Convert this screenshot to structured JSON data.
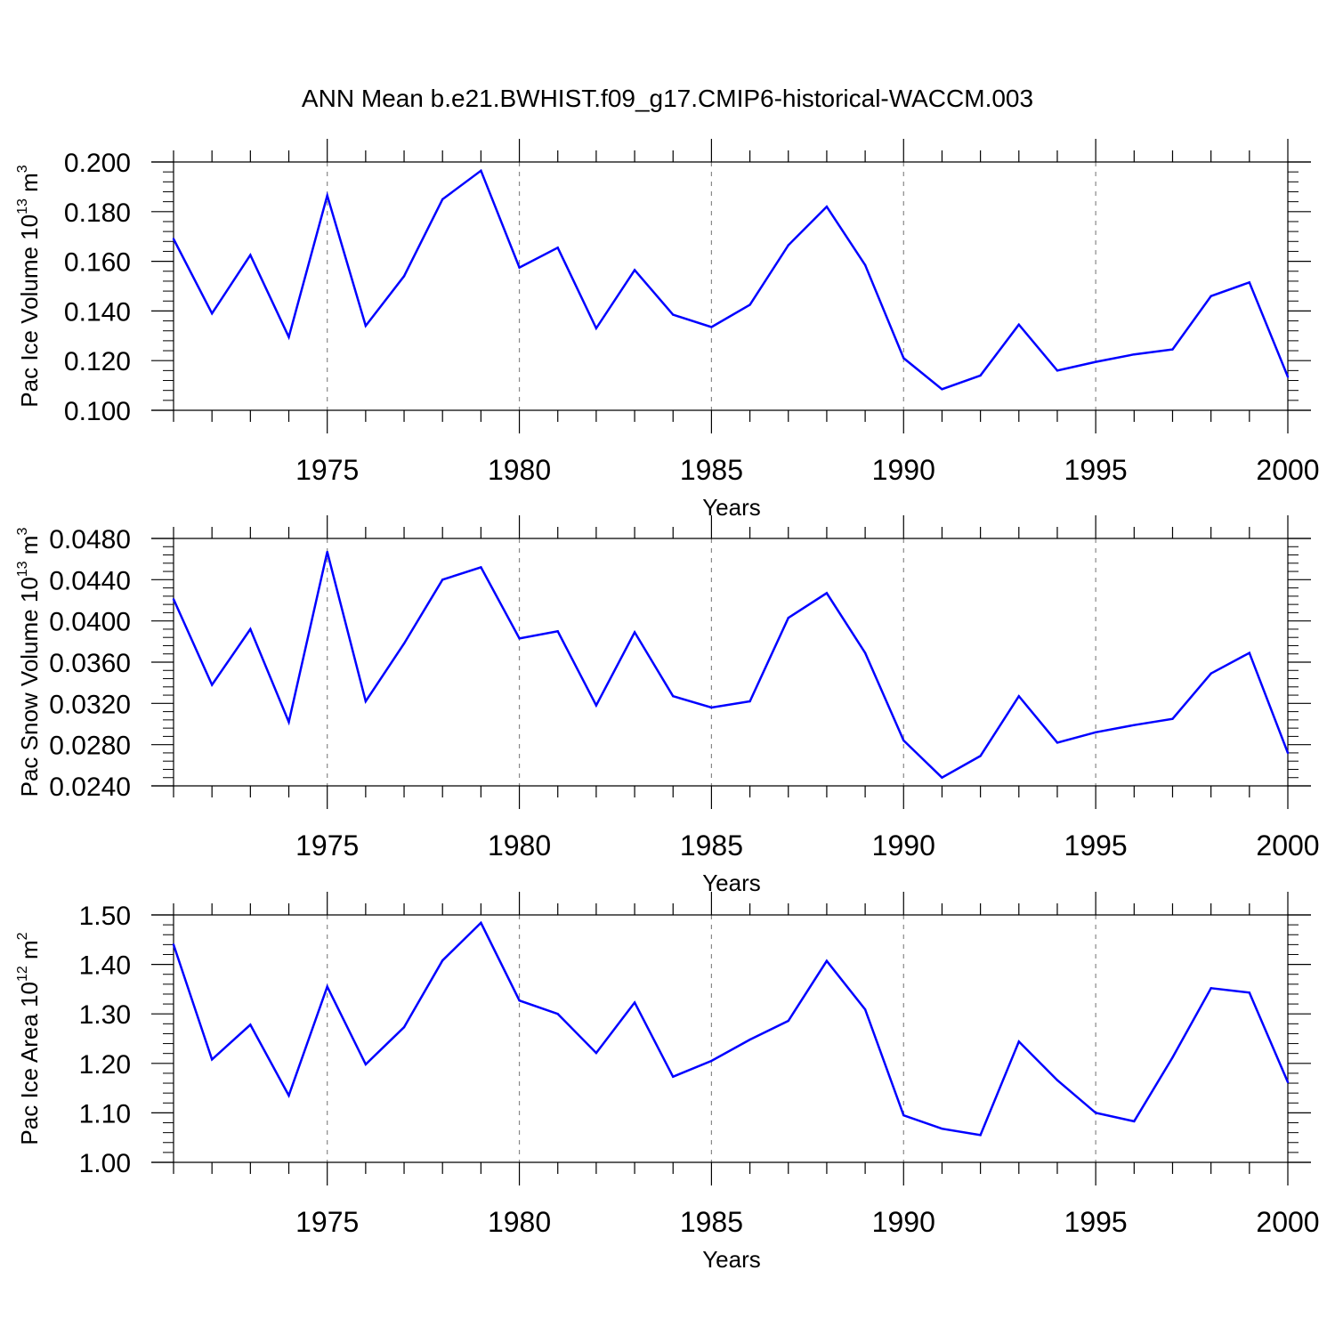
{
  "title": "ANN Mean b.e21.BWHIST.f09_g17.CMIP6-historical-WACCM.003",
  "colors": {
    "line": "#0000ff",
    "axis": "#000000",
    "grid": "#888888"
  },
  "chart_data": [
    {
      "type": "line",
      "ylabel_prefix": "Pac Ice Volume 10",
      "ylabel_exp": "13",
      "ylabel_unit": " m",
      "ylabel_unit_exp": "3",
      "xlabel": "Years",
      "xlim": [
        1971,
        2000
      ],
      "ylim": [
        0.1,
        0.2
      ],
      "yticks": [
        0.1,
        0.12,
        0.14,
        0.16,
        0.18,
        0.2
      ],
      "ytick_labels": [
        "0.100",
        "0.120",
        "0.140",
        "0.160",
        "0.180",
        "0.200"
      ],
      "xticks": [
        1975,
        1980,
        1985,
        1990,
        1995,
        2000
      ],
      "xtick_labels": [
        "1975",
        "1980",
        "1985",
        "1990",
        "1995",
        "2000"
      ],
      "x": [
        1971,
        1972,
        1973,
        1974,
        1975,
        1976,
        1977,
        1978,
        1979,
        1980,
        1981,
        1982,
        1983,
        1984,
        1985,
        1986,
        1987,
        1988,
        1989,
        1990,
        1991,
        1992,
        1993,
        1994,
        1995,
        1996,
        1997,
        1998,
        1999,
        2000
      ],
      "values": [
        0.169,
        0.139,
        0.1625,
        0.1295,
        0.1865,
        0.134,
        0.154,
        0.185,
        0.1965,
        0.1575,
        0.1655,
        0.133,
        0.1565,
        0.1385,
        0.1335,
        0.1425,
        0.1665,
        0.182,
        0.1585,
        0.121,
        0.1085,
        0.114,
        0.1345,
        0.116,
        0.1195,
        0.1225,
        0.1245,
        0.146,
        0.1515,
        0.1135
      ]
    },
    {
      "type": "line",
      "ylabel_prefix": "Pac Snow Volume 10",
      "ylabel_exp": "13",
      "ylabel_unit": " m",
      "ylabel_unit_exp": "3",
      "xlabel": "Years",
      "xlim": [
        1971,
        2000
      ],
      "ylim": [
        0.024,
        0.048
      ],
      "yticks": [
        0.024,
        0.028,
        0.032,
        0.036,
        0.04,
        0.044,
        0.048
      ],
      "ytick_labels": [
        "0.0240",
        "0.0280",
        "0.0320",
        "0.0360",
        "0.0400",
        "0.0440",
        "0.0480"
      ],
      "xticks": [
        1975,
        1980,
        1985,
        1990,
        1995,
        2000
      ],
      "xtick_labels": [
        "1975",
        "1980",
        "1985",
        "1990",
        "1995",
        "2000"
      ],
      "x": [
        1971,
        1972,
        1973,
        1974,
        1975,
        1976,
        1977,
        1978,
        1979,
        1980,
        1981,
        1982,
        1983,
        1984,
        1985,
        1986,
        1987,
        1988,
        1989,
        1990,
        1991,
        1992,
        1993,
        1994,
        1995,
        1996,
        1997,
        1998,
        1999,
        2000
      ],
      "values": [
        0.0421,
        0.0338,
        0.0392,
        0.0302,
        0.0467,
        0.0322,
        0.0378,
        0.044,
        0.0452,
        0.0383,
        0.039,
        0.0318,
        0.0389,
        0.0327,
        0.0316,
        0.0322,
        0.0403,
        0.0427,
        0.0369,
        0.0284,
        0.0248,
        0.0269,
        0.0327,
        0.0282,
        0.0292,
        0.0299,
        0.0305,
        0.0349,
        0.0369,
        0.0272
      ]
    },
    {
      "type": "line",
      "ylabel_prefix": "Pac Ice Area 10",
      "ylabel_exp": "12",
      "ylabel_unit": " m",
      "ylabel_unit_exp": "2",
      "xlabel": "Years",
      "xlim": [
        1971,
        2000
      ],
      "ylim": [
        1.0,
        1.5
      ],
      "yticks": [
        1.0,
        1.1,
        1.2,
        1.3,
        1.4,
        1.5
      ],
      "ytick_labels": [
        "1.00",
        "1.10",
        "1.20",
        "1.30",
        "1.40",
        "1.50"
      ],
      "xticks": [
        1975,
        1980,
        1985,
        1990,
        1995,
        2000
      ],
      "xtick_labels": [
        "1975",
        "1980",
        "1985",
        "1990",
        "1995",
        "2000"
      ],
      "x": [
        1971,
        1972,
        1973,
        1974,
        1975,
        1976,
        1977,
        1978,
        1979,
        1980,
        1981,
        1982,
        1983,
        1984,
        1985,
        1986,
        1987,
        1988,
        1989,
        1990,
        1991,
        1992,
        1993,
        1994,
        1995,
        1996,
        1997,
        1998,
        1999,
        2000
      ],
      "values": [
        1.44,
        1.208,
        1.278,
        1.135,
        1.355,
        1.198,
        1.273,
        1.408,
        1.484,
        1.327,
        1.3,
        1.221,
        1.323,
        1.173,
        1.205,
        1.248,
        1.286,
        1.407,
        1.309,
        1.095,
        1.068,
        1.055,
        1.244,
        1.166,
        1.1,
        1.083,
        1.212,
        1.352,
        1.343,
        1.162
      ]
    }
  ]
}
